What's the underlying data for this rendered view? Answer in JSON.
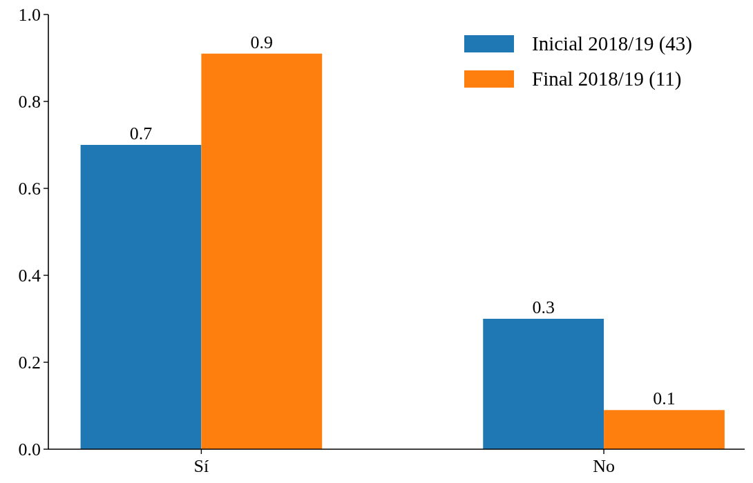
{
  "chart_data": {
    "type": "bar",
    "categories": [
      "Sí",
      "No"
    ],
    "series": [
      {
        "name": "Inicial 2018/19 (43)",
        "color": "#1f77b4",
        "values": [
          0.7,
          0.3
        ],
        "value_labels": [
          "0.7",
          "0.3"
        ]
      },
      {
        "name": "Final 2018/19 (11)",
        "color": "#ff7f0e",
        "values": [
          0.91,
          0.09
        ],
        "value_labels": [
          "0.9",
          "0.1"
        ]
      }
    ],
    "ylim": [
      0,
      1.0
    ],
    "yticks": [
      {
        "value": 0,
        "label": "0.0"
      },
      {
        "value": 0.2,
        "label": "0.2"
      },
      {
        "value": 0.4,
        "label": "0.4"
      },
      {
        "value": 0.6,
        "label": "0.6"
      },
      {
        "value": 0.8,
        "label": "0.8"
      },
      {
        "value": 1.0,
        "label": "1.0"
      }
    ],
    "grid": false,
    "legend": "top right"
  }
}
